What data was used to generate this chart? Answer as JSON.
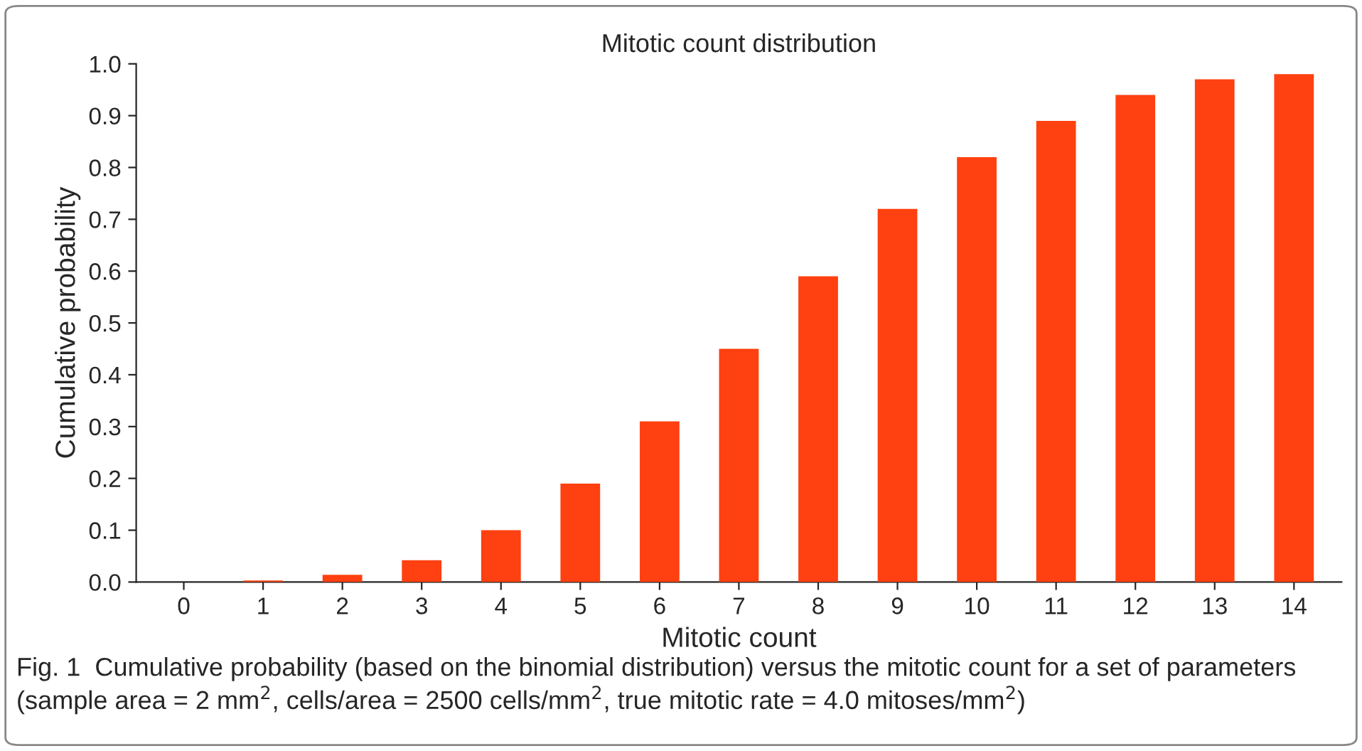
{
  "chart_data": {
    "type": "bar",
    "title": "Mitotic count distribution",
    "xlabel": "Mitotic count",
    "ylabel": "Cumulative probability",
    "categories": [
      "0",
      "1",
      "2",
      "3",
      "4",
      "5",
      "6",
      "7",
      "8",
      "9",
      "10",
      "11",
      "12",
      "13",
      "14"
    ],
    "values": [
      0.0,
      0.003,
      0.014,
      0.042,
      0.1,
      0.19,
      0.31,
      0.45,
      0.59,
      0.72,
      0.82,
      0.89,
      0.94,
      0.97,
      0.98
    ],
    "color": "#ff4010",
    "ylim": [
      0,
      1
    ],
    "yticks": [
      {
        "value": 0,
        "label": "0.0"
      },
      0.1,
      0.2,
      0.3,
      0.4,
      0.5,
      0.6,
      0.7,
      0.8,
      0.9,
      {
        "value": 1,
        "label": "1.0"
      }
    ],
    "grid": false,
    "annotations": [
      "Fig. 1  Cumulative probability (based on the binomial distribution) versus the mitotic count for a set of parameters (sample area = 2 mm$^{2}$, cells/area = 2500 cells/mm$^{2}$, true mitotic rate = 4.0 mitoses/mm$^{2}$)"
    ]
  }
}
